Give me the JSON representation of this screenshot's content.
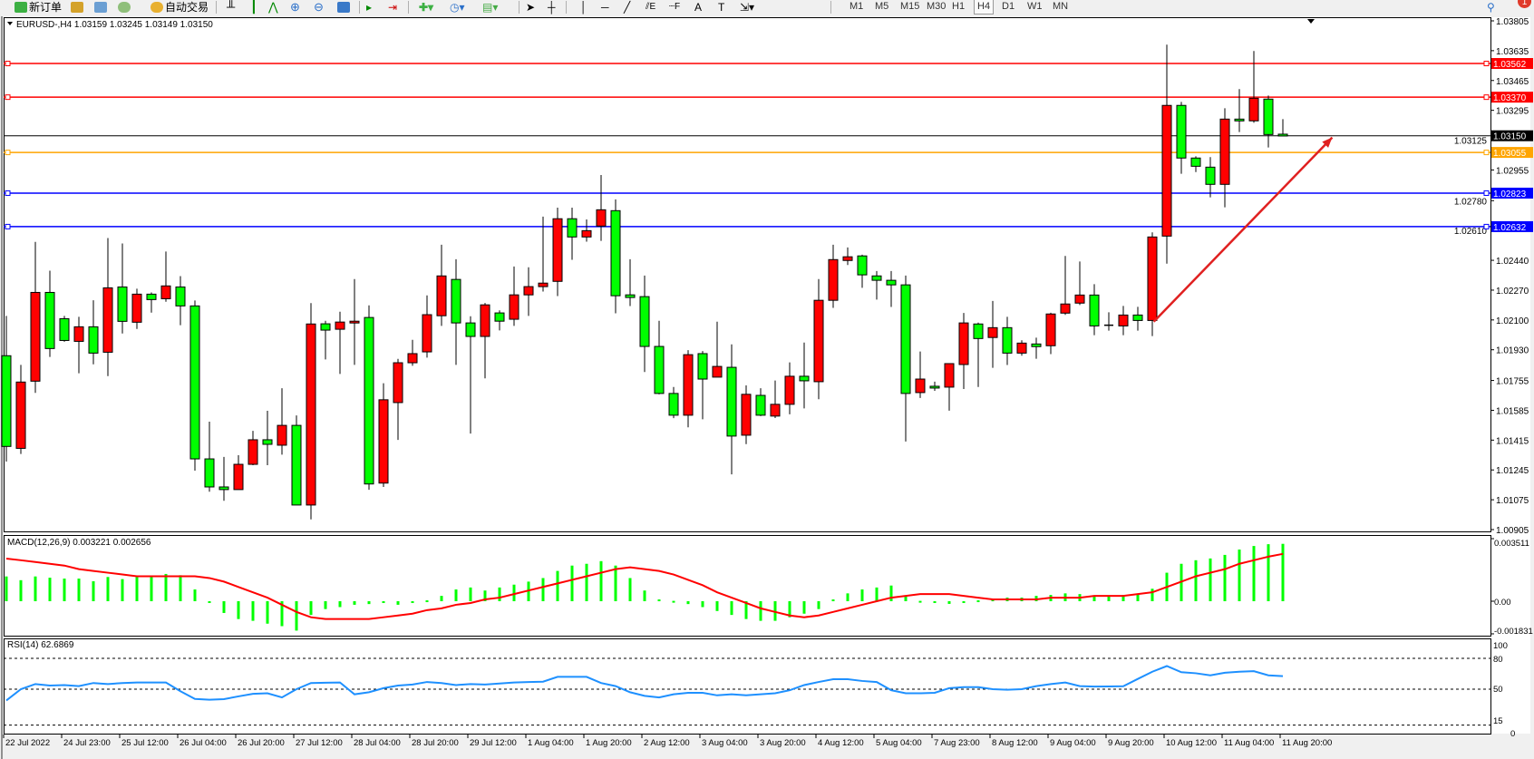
{
  "toolbar": {
    "new_order_label": "新订单",
    "auto_trading_label": "自动交易",
    "timeframes": [
      "M1",
      "M5",
      "M15",
      "M30",
      "H1",
      "H4",
      "D1",
      "W1",
      "MN"
    ],
    "selected_timeframe": "H4",
    "notification_count": "1"
  },
  "chart_header": "EURUSD-,H4  1.03159 1.03245 1.03149 1.03150",
  "colors": {
    "bull": "#ff0000",
    "bear": "#00ff00",
    "macd_hist": "#00ff00",
    "signal": "#ff0000",
    "rsi": "#1e90ff",
    "support": "#0000ff",
    "resistance": "#ff0000",
    "pivot": "#ffa500"
  },
  "price_axis_labels": [
    "1.03805",
    "1.03635",
    "1.03465",
    "1.03295",
    "1.03125",
    "1.02955",
    "1.02780",
    "1.02610",
    "1.02440",
    "1.02270",
    "1.02100",
    "1.01930",
    "1.01755",
    "1.01585",
    "1.01415",
    "1.01245",
    "1.01075",
    "1.00905"
  ],
  "horizontal_lines": [
    {
      "price": "1.03562",
      "color": "#ff0000"
    },
    {
      "price": "1.03370",
      "color": "#ff0000"
    },
    {
      "price": "1.03055",
      "color": "#ffa500"
    },
    {
      "price": "1.02823",
      "color": "#0000ff"
    },
    {
      "price": "1.02632",
      "color": "#0000ff"
    }
  ],
  "current_price": "1.03150",
  "trendline": {
    "color": "#e02020",
    "from": {
      "bar": 79.1,
      "price": 1.0209
    },
    "to": {
      "bar": 91.4,
      "price": 1.0314
    }
  },
  "time_labels": [
    "22 Jul 2022",
    "24 Jul 23:00",
    "25 Jul 12:00",
    "26 Jul 04:00",
    "26 Jul 20:00",
    "27 Jul 12:00",
    "28 Jul 04:00",
    "28 Jul 20:00",
    "29 Jul 12:00",
    "1 Aug 04:00",
    "1 Aug 20:00",
    "2 Aug 12:00",
    "3 Aug 04:00",
    "3 Aug 20:00",
    "4 Aug 12:00",
    "5 Aug 04:00",
    "7 Aug 23:00",
    "8 Aug 12:00",
    "9 Aug 04:00",
    "9 Aug 20:00",
    "10 Aug 12:00",
    "11 Aug 04:00",
    "11 Aug 20:00"
  ],
  "macd": {
    "label": "MACD(12,26,9) 0.003221 0.002656",
    "axis_labels": [
      "0.003511",
      "0.00",
      "-0.001831"
    ],
    "hist": [
      0.00139,
      0.00118,
      0.00139,
      0.00132,
      0.00127,
      0.00127,
      0.00112,
      0.00136,
      0.00124,
      0.00137,
      0.00143,
      0.00153,
      0.00146,
      0.00066,
      -0.0001,
      -0.00066,
      -0.001,
      -0.0011,
      -0.00126,
      -0.0014,
      -0.00165,
      -0.00077,
      -0.00044,
      -0.00033,
      -0.0002,
      -0.00016,
      -0.0001,
      -0.0002,
      -0.0001,
      5e-05,
      0.0003,
      0.00066,
      0.00077,
      0.0006,
      0.00077,
      0.00093,
      0.0011,
      0.0013,
      0.0017,
      0.002,
      0.0021,
      0.00225,
      0.002,
      0.0013,
      0.0006,
      0.0001,
      2e-05,
      -0.00016,
      -0.00033,
      -0.00055,
      -0.00077,
      -0.001,
      -0.0011,
      -0.0011,
      -0.0009,
      -0.0007,
      -0.00044,
      0.0001,
      0.00044,
      0.00066,
      0.00077,
      0.00088,
      0.00033,
      2e-05,
      -0.0001,
      -0.00015,
      -5e-05,
      5e-05,
      0.0001,
      0.0002,
      0.0002,
      0.0003,
      0.00035,
      0.00044,
      0.0004,
      0.0003,
      0.0003,
      0.00035,
      0.0004,
      0.0007,
      0.0016,
      0.0021,
      0.0023,
      0.0024,
      0.0026,
      0.0029,
      0.0031,
      0.0032,
      0.003221
    ],
    "signal": [
      0.00239,
      0.0023,
      0.0022,
      0.0021,
      0.002,
      0.0018,
      0.0017,
      0.0016,
      0.0015,
      0.0014,
      0.0014,
      0.0014,
      0.0014,
      0.0014,
      0.0013,
      0.0011,
      0.0008,
      0.0005,
      0.0002,
      -0.0002,
      -0.0006,
      -0.0009,
      -0.001,
      -0.001,
      -0.001,
      -0.001,
      -0.0009,
      -0.0008,
      -0.0007,
      -0.0005,
      -0.0004,
      -0.0002,
      -0.0001,
      0.0001,
      0.0002,
      0.0004,
      0.0006,
      0.0008,
      0.001,
      0.0012,
      0.0014,
      0.0016,
      0.0018,
      0.0019,
      0.0018,
      0.0017,
      0.0015,
      0.0012,
      0.0009,
      0.0005,
      0.0002,
      -0.0001,
      -0.0004,
      -0.0006,
      -0.0008,
      -0.0009,
      -0.0008,
      -0.0006,
      -0.0004,
      -0.0002,
      0,
      0.0002,
      0.0003,
      0.0004,
      0.0004,
      0.0004,
      0.0003,
      0.0002,
      0.0001,
      0.0001,
      0.0001,
      0.0001,
      0.0002,
      0.0002,
      0.0002,
      0.0003,
      0.0003,
      0.0003,
      0.0004,
      0.0005,
      0.0008,
      0.0011,
      0.0014,
      0.0016,
      0.0018,
      0.0021,
      0.0023,
      0.0025,
      0.002656
    ]
  },
  "rsi": {
    "label": "RSI(14) 62.6869",
    "axis_labels": [
      "100",
      "80",
      "50",
      "15",
      "0"
    ],
    "levels": [
      80,
      50,
      15
    ],
    "values": [
      39,
      50,
      55,
      53.5,
      54,
      53,
      56,
      55,
      56,
      56.5,
      56.5,
      56.5,
      48,
      40.5,
      39.7,
      40.3,
      43,
      45.5,
      46,
      42,
      50,
      56,
      56.3,
      56.5,
      45,
      47,
      51,
      53.5,
      54.5,
      57,
      56,
      54,
      55,
      54.5,
      55.5,
      56.5,
      57,
      57.3,
      62,
      62,
      62,
      56,
      53,
      47,
      43.5,
      42,
      45,
      46.5,
      46.5,
      44,
      45,
      44,
      45,
      46,
      49,
      54,
      57,
      59.7,
      59.7,
      58,
      57,
      49,
      46,
      46,
      46.5,
      51,
      52,
      52,
      50,
      49.5,
      50,
      53,
      55,
      56.5,
      53,
      52.5,
      52.7,
      52.9,
      60,
      67,
      72.5,
      66.5,
      65.5,
      63.5,
      66,
      67,
      67.5,
      63.5,
      62.6869
    ]
  },
  "candles": [
    [
      1.01896,
      1.02123,
      1.01293,
      1.01379
    ],
    [
      1.01368,
      1.01844,
      1.01336,
      1.01746
    ],
    [
      1.01751,
      1.02545,
      1.01684,
      1.02257
    ],
    [
      1.02257,
      1.02381,
      1.01889,
      1.01937
    ],
    [
      1.02107,
      1.02123,
      1.01976,
      1.01983
    ],
    [
      1.01978,
      1.02118,
      1.01796,
      1.02061
    ],
    [
      1.02061,
      1.02212,
      1.01847,
      1.01911
    ],
    [
      1.01916,
      1.02567,
      1.0178,
      1.02283
    ],
    [
      1.02288,
      1.02536,
      1.02023,
      1.02092
    ],
    [
      1.02087,
      1.02278,
      1.02049,
      1.02247
    ],
    [
      1.02247,
      1.02257,
      1.02142,
      1.02216
    ],
    [
      1.02221,
      1.0249,
      1.02204,
      1.02294
    ],
    [
      1.02288,
      1.0235,
      1.0207,
      1.0218
    ],
    [
      1.0218,
      1.02211,
      1.01241,
      1.01308
    ],
    [
      1.01308,
      1.0152,
      1.01121,
      1.01148
    ],
    [
      1.01148,
      1.01319,
      1.01069,
      1.01133
    ],
    [
      1.01133,
      1.01329,
      1.01133,
      1.01277
    ],
    [
      1.01277,
      1.01468,
      1.01272,
      1.01417
    ],
    [
      1.01417,
      1.01582,
      1.01272,
      1.01391
    ],
    [
      1.01386,
      1.01711,
      1.01332,
      1.01499
    ],
    [
      1.01499,
      1.01556,
      1.01045,
      1.01045
    ],
    [
      1.01045,
      1.02196,
      1.00963,
      1.02077
    ],
    [
      1.02078,
      1.02095,
      1.01875,
      1.02042
    ],
    [
      1.02047,
      1.02147,
      1.01792,
      1.02088
    ],
    [
      1.02092,
      1.02333,
      1.01844,
      1.02093
    ],
    [
      1.02114,
      1.02183,
      1.01132,
      1.01165
    ],
    [
      1.0117,
      1.01739,
      1.01148,
      1.01645
    ],
    [
      1.01629,
      1.01878,
      1.01416,
      1.01856
    ],
    [
      1.01856,
      1.01987,
      1.01839,
      1.01908
    ],
    [
      1.01918,
      1.0224,
      1.01885,
      1.0213
    ],
    [
      1.02124,
      1.02529,
      1.02066,
      1.02351
    ],
    [
      1.02331,
      1.02446,
      1.01844,
      1.02083
    ],
    [
      1.02083,
      1.02121,
      1.01452,
      1.02006
    ],
    [
      1.02006,
      1.02197,
      1.01767,
      1.02186
    ],
    [
      1.0214,
      1.02155,
      1.0204,
      1.02093
    ],
    [
      1.02104,
      1.02405,
      1.02066,
      1.02243
    ],
    [
      1.02243,
      1.024,
      1.02123,
      1.0229
    ],
    [
      1.0229,
      1.02689,
      1.02262,
      1.0231
    ],
    [
      1.0232,
      1.0274,
      1.02236,
      1.02677
    ],
    [
      1.02677,
      1.0274,
      1.02443,
      1.02573
    ],
    [
      1.02573,
      1.02673,
      1.02546,
      1.02609
    ],
    [
      1.02635,
      1.02926,
      1.02551,
      1.02728
    ],
    [
      1.02723,
      1.02787,
      1.02138,
      1.02238
    ],
    [
      1.02243,
      1.02446,
      1.02179,
      1.02228
    ],
    [
      1.02233,
      1.02353,
      1.01803,
      1.01949
    ],
    [
      1.01949,
      1.02095,
      1.01676,
      1.01681
    ],
    [
      1.01681,
      1.01718,
      1.0154,
      1.01557
    ],
    [
      1.01557,
      1.01928,
      1.01488,
      1.01902
    ],
    [
      1.01908,
      1.01923,
      1.01534,
      1.01763
    ],
    [
      1.01774,
      1.0209,
      1.01774,
      1.01835
    ],
    [
      1.0183,
      1.01961,
      1.0122,
      1.01438
    ],
    [
      1.01443,
      1.01727,
      1.01392,
      1.01676
    ],
    [
      1.0167,
      1.01711,
      1.01552,
      1.01557
    ],
    [
      1.01552,
      1.01755,
      1.01541,
      1.01619
    ],
    [
      1.01619,
      1.01858,
      1.01562,
      1.01779
    ],
    [
      1.01779,
      1.01971,
      1.01596,
      1.01753
    ],
    [
      1.01748,
      1.02333,
      1.01648,
      1.02212
    ],
    [
      1.02212,
      1.02529,
      1.02169,
      1.02444
    ],
    [
      1.02439,
      1.02513,
      1.02413,
      1.0246
    ],
    [
      1.02465,
      1.02472,
      1.02283,
      1.02357
    ],
    [
      1.02351,
      1.02379,
      1.02216,
      1.02326
    ],
    [
      1.02326,
      1.02379,
      1.02174,
      1.023
    ],
    [
      1.023,
      1.02353,
      1.01407,
      1.01681
    ],
    [
      1.01686,
      1.0192,
      1.01655,
      1.01763
    ],
    [
      1.01722,
      1.01748,
      1.01696,
      1.01712
    ],
    [
      1.01717,
      1.01851,
      1.01583,
      1.01851
    ],
    [
      1.01846,
      1.0214,
      1.01706,
      1.02083
    ],
    [
      1.02077,
      1.02085,
      1.01718,
      1.01994
    ],
    [
      1.02,
      1.02208,
      1.01827,
      1.02056
    ],
    [
      1.02056,
      1.02118,
      1.01843,
      1.01911
    ],
    [
      1.01911,
      1.01984,
      1.01896,
      1.01968
    ],
    [
      1.01963,
      1.01999,
      1.01879,
      1.01948
    ],
    [
      1.01953,
      1.02141,
      1.01905,
      1.02134
    ],
    [
      1.02139,
      1.02465,
      1.02129,
      1.02191
    ],
    [
      1.02196,
      1.02433,
      1.02185,
      1.02242
    ],
    [
      1.02242,
      1.02304,
      1.02013,
      1.02066
    ],
    [
      1.0207,
      1.02144,
      1.02039,
      1.0207
    ],
    [
      1.02066,
      1.0218,
      1.02013,
      1.02128
    ],
    [
      1.02128,
      1.02175,
      1.02039,
      1.02097
    ],
    [
      1.02097,
      1.02599,
      1.02008,
      1.02573
    ],
    [
      1.02578,
      1.03669,
      1.02421,
      1.03323
    ],
    [
      1.03323,
      1.03343,
      1.02933,
      1.03023
    ],
    [
      1.03023,
      1.03033,
      1.02943,
      1.02976
    ],
    [
      1.02971,
      1.03028,
      1.02799,
      1.02873
    ],
    [
      1.02873,
      1.03307,
      1.02742,
      1.03245
    ],
    [
      1.03245,
      1.03416,
      1.03171,
      1.03235
    ],
    [
      1.03235,
      1.03633,
      1.03224,
      1.03364
    ],
    [
      1.03359,
      1.03379,
      1.03083,
      1.03157
    ],
    [
      1.03159,
      1.03245,
      1.03149,
      1.0315
    ]
  ]
}
